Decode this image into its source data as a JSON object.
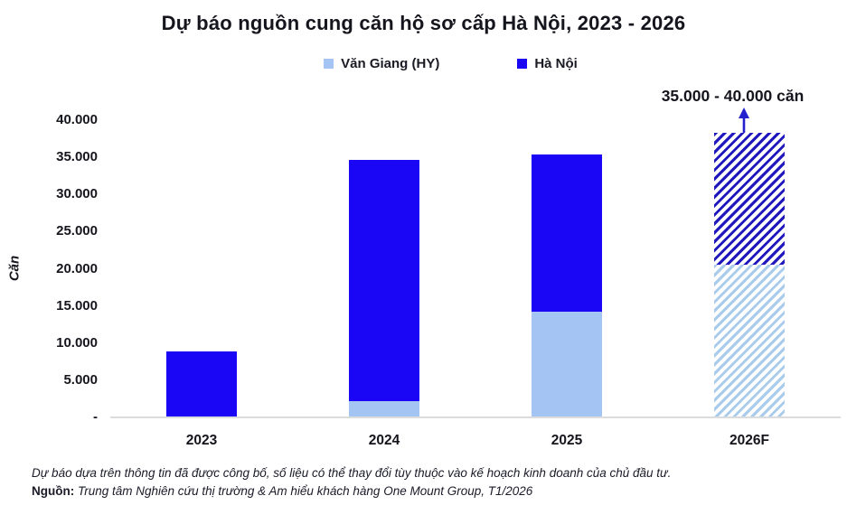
{
  "title": "Dự báo nguồn cung căn hộ sơ cấp Hà Nội, 2023 - 2026",
  "legend": {
    "items": [
      {
        "label": "Văn Giang (HY)",
        "color": "#a4c5f4"
      },
      {
        "label": "Hà Nội",
        "color": "#1a06f4"
      }
    ]
  },
  "annotation": {
    "text": "35.000 - 40.000 căn"
  },
  "y_axis": {
    "label": "Căn",
    "ticks": [
      "40.000",
      "35.000",
      "30.000",
      "25.000",
      "20.000",
      "15.000",
      "10.000",
      "5.000",
      "-"
    ]
  },
  "footnote": "Dự báo dựa trên thông tin đã được công bố, số liệu có thể thay đổi tùy thuộc vào kế hoạch kinh doanh của chủ đầu tư.",
  "source": {
    "label": "Nguồn:",
    "text": "Trung tâm Nghiên cứu thị trường & Am hiểu khách hàng One Mount Group, T1/2026"
  },
  "chart_data": {
    "type": "bar",
    "stacked": true,
    "title": "Dự báo nguồn cung căn hộ sơ cấp Hà Nội, 2023 - 2026",
    "xlabel": "",
    "ylabel": "Căn",
    "ylim": [
      0,
      40000
    ],
    "ytick_step": 5000,
    "grid": false,
    "legend_position": "top",
    "categories": [
      "2023",
      "2024",
      "2025",
      "2026F"
    ],
    "series": [
      {
        "name": "Văn Giang (HY)",
        "color": "#a4c5f4",
        "hatch_color": "#a9cbec",
        "values": [
          0,
          2200,
          14200,
          20600
        ]
      },
      {
        "name": "Hà Nội",
        "color": "#1a06f4",
        "hatch_color": "#2018bc",
        "values": [
          8900,
          32500,
          21200,
          17700
        ]
      }
    ],
    "totals": [
      8900,
      34700,
      35400,
      38300
    ],
    "hatched_categories": [
      "2026F"
    ],
    "annotation": {
      "text": "35.000 - 40.000 căn",
      "category": "2026F",
      "arrow_color": "#2420ce"
    }
  }
}
